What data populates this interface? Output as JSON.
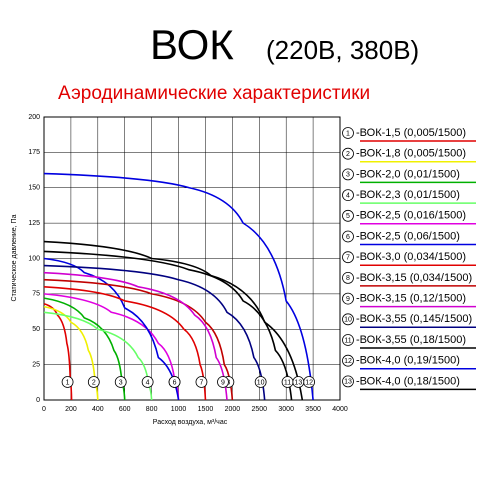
{
  "chart_data": {
    "type": "line",
    "title": "ВОК",
    "title_suffix": "(220В, 380В)",
    "subtitle": "Аэродинамические характеристики",
    "x_label": "Расход воздуха, м³/час",
    "y_label": "Статическое давление, Па",
    "xlim": [
      0,
      4000
    ],
    "ylim": [
      0,
      200
    ],
    "xticks": [
      0,
      200,
      400,
      600,
      800,
      1000,
      1500,
      2000,
      2500,
      3000,
      3500,
      4000
    ],
    "yticks": [
      0,
      25,
      50,
      75,
      100,
      125,
      150,
      175,
      200
    ],
    "grid": true,
    "series": [
      {
        "id": "1",
        "name": "-ВОК-1,5 (0,005/1500)",
        "color": "#e00000",
        "x": [
          0,
          100,
          170,
          195,
          205
        ],
        "values": [
          68,
          60,
          40,
          15,
          0
        ]
      },
      {
        "id": "2",
        "name": "-ВОК-1,8 (0,005/1500)",
        "color": "#f0f000",
        "x": [
          0,
          200,
          330,
          380,
          400
        ],
        "values": [
          66,
          55,
          35,
          12,
          0
        ]
      },
      {
        "id": "3",
        "name": "-ВОК-2,0 (0,01/1500)",
        "color": "#00b000",
        "x": [
          0,
          300,
          520,
          580,
          600
        ],
        "values": [
          72,
          58,
          35,
          12,
          0
        ]
      },
      {
        "id": "4",
        "name": "-ВОК-2,3 (0,01/1500)",
        "color": "#66ff66",
        "x": [
          0,
          400,
          700,
          780,
          800
        ],
        "values": [
          62,
          50,
          30,
          10,
          0
        ]
      },
      {
        "id": "5",
        "name": "-ВОК-2,5 (0,016/1500)",
        "color": "#e000e0",
        "x": [
          0,
          500,
          850,
          970,
          1000
        ],
        "values": [
          75,
          62,
          40,
          15,
          0
        ]
      },
      {
        "id": "6",
        "name": "-ВОК-2,5 (0,06/1500)",
        "color": "#0000e0",
        "x": [
          0,
          300,
          600,
          850,
          1000
        ],
        "values": [
          100,
          90,
          65,
          30,
          0
        ]
      },
      {
        "id": "7",
        "name": "-ВОК-3,0 (0,034/1500)",
        "color": "#e00000",
        "x": [
          0,
          600,
          1100,
          1400,
          1500
        ],
        "values": [
          80,
          70,
          50,
          25,
          0
        ]
      },
      {
        "id": "8",
        "name": "-ВОК-3,15 (0,034/1500)",
        "color": "#c00000",
        "x": [
          0,
          800,
          1500,
          1850,
          2000
        ],
        "values": [
          85,
          75,
          55,
          25,
          0
        ]
      },
      {
        "id": "9",
        "name": "-ВОК-3,15 (0,12/1500)",
        "color": "#d000d0",
        "x": [
          0,
          700,
          1300,
          1700,
          1900
        ],
        "values": [
          90,
          80,
          60,
          30,
          0
        ]
      },
      {
        "id": "10",
        "name": "-ВОК-3,55 (0,145/1500)",
        "color": "#000080",
        "x": [
          0,
          1000,
          1900,
          2400,
          2600
        ],
        "values": [
          95,
          85,
          62,
          30,
          0
        ]
      },
      {
        "id": "11",
        "name": "-ВОК-3,55 (0,18/1500)",
        "color": "#000000",
        "x": [
          0,
          1200,
          2200,
          2800,
          3100
        ],
        "values": [
          105,
          92,
          70,
          35,
          0
        ]
      },
      {
        "id": "12",
        "name": "-ВОК-4,0 (0,19/1500)",
        "color": "#0000e0",
        "x": [
          0,
          1200,
          2200,
          3000,
          3500
        ],
        "values": [
          160,
          150,
          125,
          70,
          0
        ]
      },
      {
        "id": "13",
        "name": "-ВОК-4,0 (0,18/1500)",
        "color": "#000000",
        "x": [
          0,
          800,
          1600,
          2600,
          3300
        ],
        "values": [
          112,
          100,
          88,
          55,
          0
        ]
      }
    ]
  }
}
